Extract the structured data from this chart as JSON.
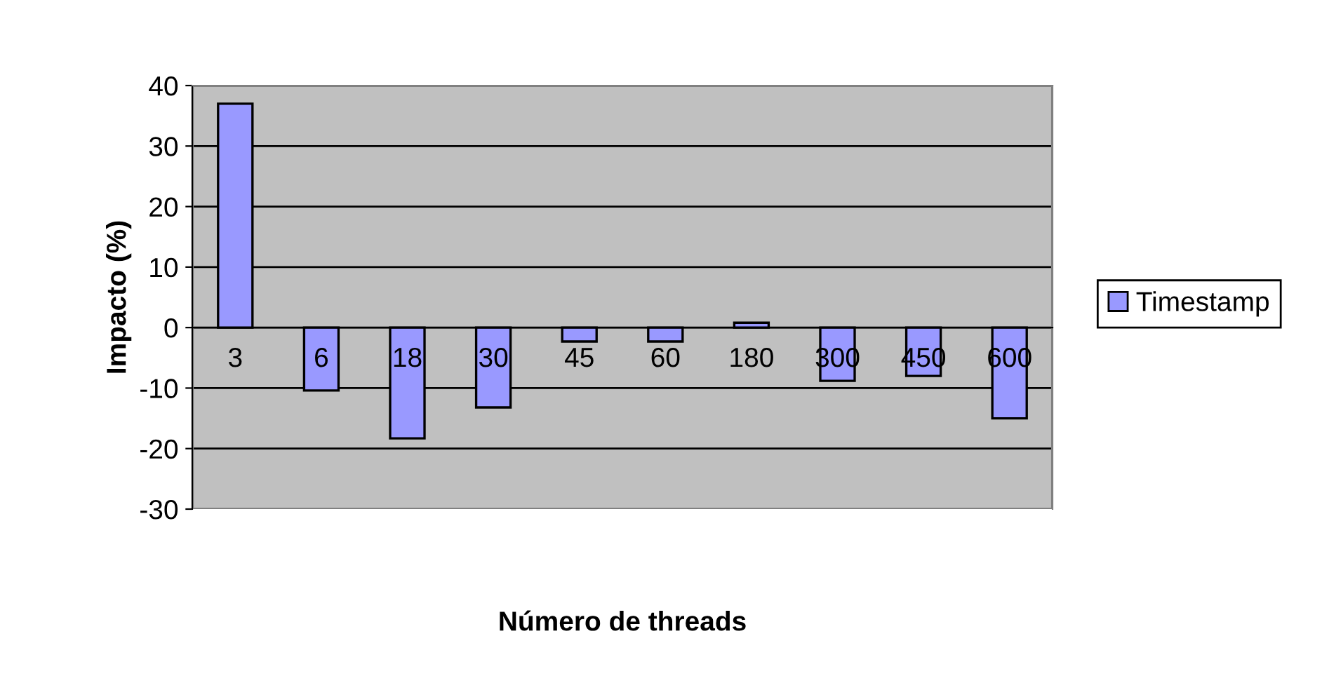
{
  "chart_data": {
    "type": "bar",
    "xlabel": "Número de threads",
    "ylabel": "Impacto (%)",
    "categories": [
      "3",
      "6",
      "18",
      "30",
      "45",
      "60",
      "180",
      "300",
      "450",
      "600"
    ],
    "series": [
      {
        "name": "Timestamp",
        "color": "#9999ff",
        "values": [
          37,
          -10.4,
          -18.3,
          -13.2,
          -2.3,
          -2.3,
          0.8,
          -8.8,
          -8,
          -15
        ]
      }
    ],
    "ylim": [
      -30,
      40
    ],
    "yticks": [
      -30,
      -20,
      -10,
      0,
      10,
      20,
      30,
      40
    ],
    "grid": "y",
    "legend": "right"
  }
}
